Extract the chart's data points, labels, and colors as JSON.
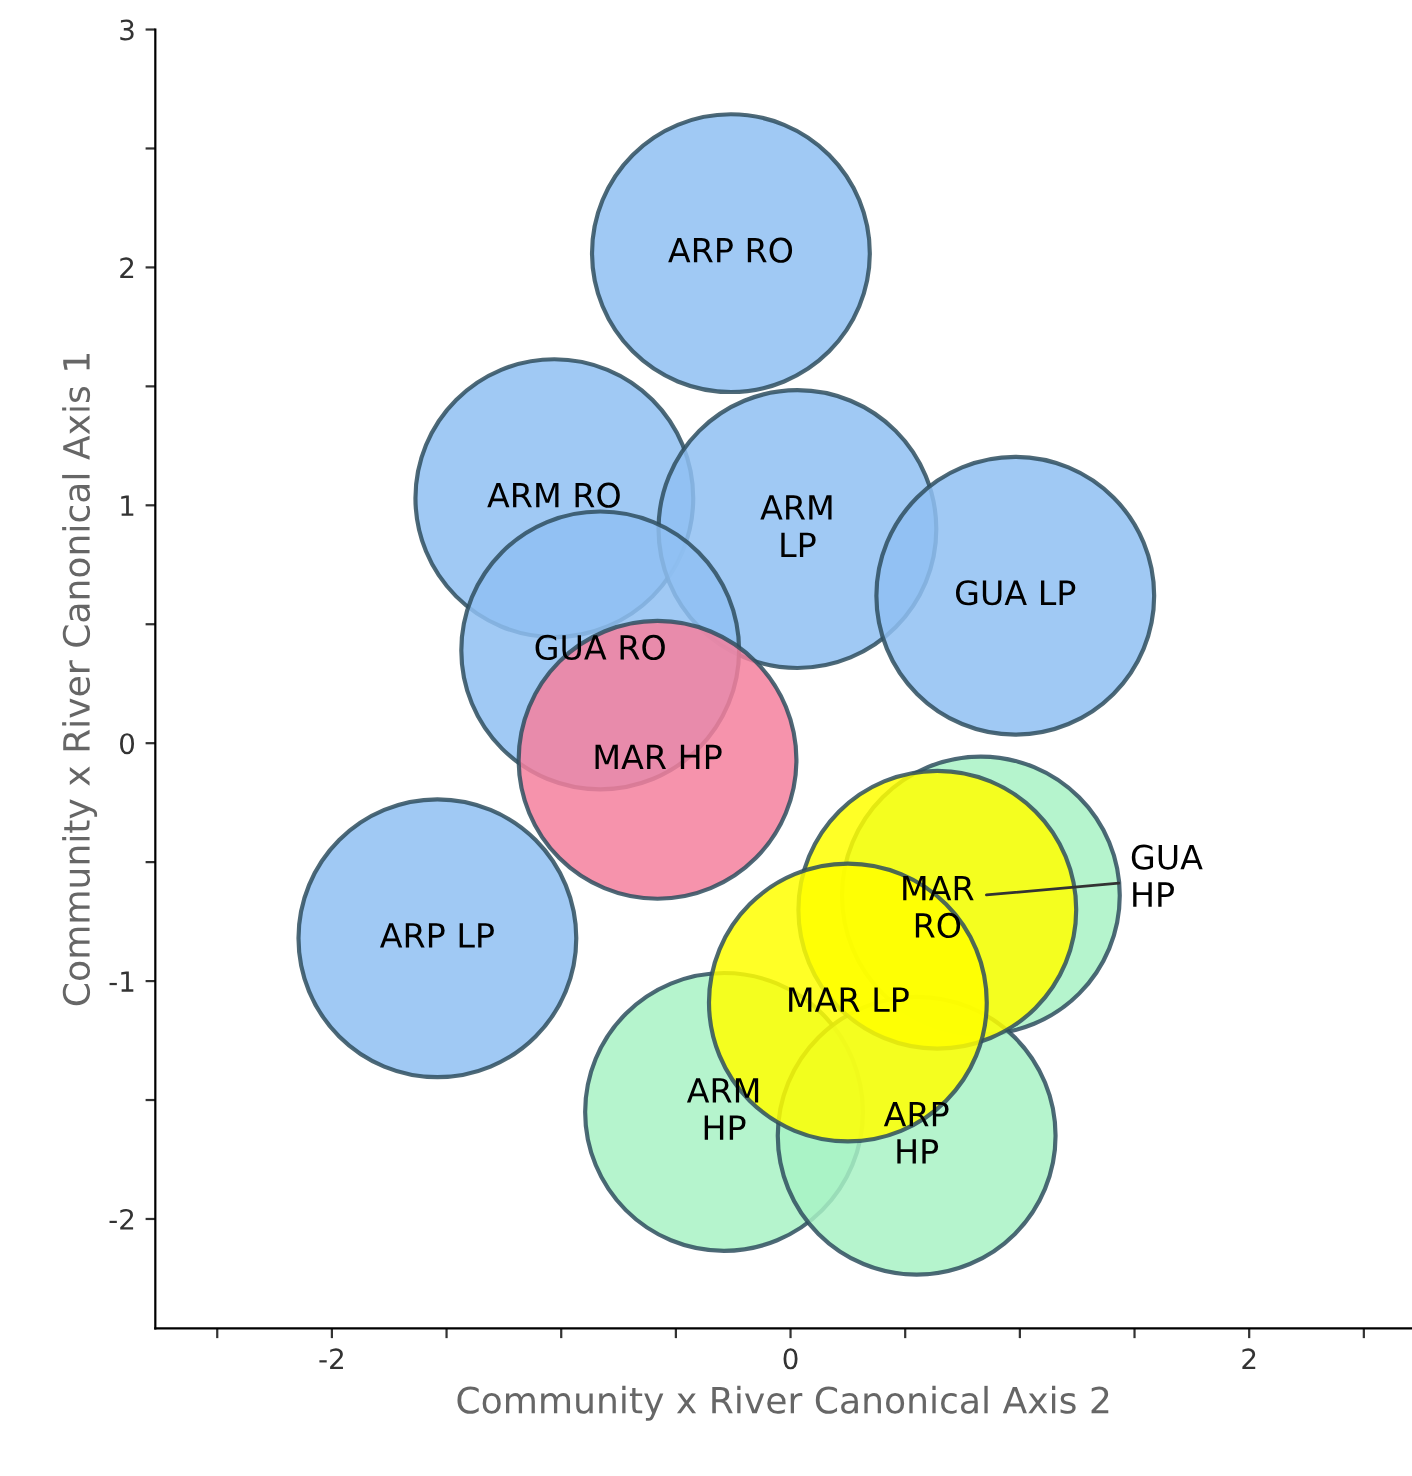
{
  "chart_data": {
    "type": "bubble",
    "xlabel": "Community x River Canonical Axis 2",
    "ylabel": "Community x River Canonical Axis 1",
    "xlim": [
      -2.77,
      2.71
    ],
    "ylim": [
      -2.46,
      3.0
    ],
    "xticks": [
      {
        "value": -2.5,
        "label": null
      },
      -2,
      {
        "value": -1.5,
        "label": null
      },
      {
        "value": -1,
        "label": null
      },
      {
        "value": -0.5,
        "label": null
      },
      0,
      {
        "value": 0.5,
        "label": null
      },
      {
        "value": 1,
        "label": null
      },
      {
        "value": 1.5,
        "label": null
      },
      2,
      {
        "value": 2.5,
        "label": null
      }
    ],
    "yticks": [
      -2,
      {
        "value": -1.5,
        "label": null
      },
      -1,
      {
        "value": -0.5,
        "label": null
      },
      0,
      {
        "value": 0.5,
        "label": null
      },
      1,
      {
        "value": 1.5,
        "label": null
      },
      2,
      {
        "value": 2.5,
        "label": null
      },
      3
    ],
    "grid": false,
    "legend": false,
    "series": [
      {
        "color": "#8fc0f2",
        "x": [
          -0.26,
          -1.03,
          0.03,
          0.98,
          -0.83,
          -1.54
        ],
        "values": [
          2.06,
          1.03,
          0.9,
          0.62,
          0.39,
          -0.82
        ],
        "sizes": [
          1,
          1,
          1,
          1,
          1,
          1
        ]
      },
      {
        "color": "#f4809e",
        "x": [
          -0.58
        ],
        "values": [
          -0.07
        ],
        "sizes": [
          1
        ]
      },
      {
        "color": "#a8f2c4",
        "x": [
          0.83,
          -0.29,
          0.55
        ],
        "values": [
          -0.64,
          -1.55,
          -1.65
        ],
        "sizes": [
          1,
          1,
          1
        ]
      },
      {
        "color": "#ffff00",
        "x": [
          0.64,
          0.25
        ],
        "values": [
          -0.7,
          -1.09
        ],
        "sizes": [
          1,
          1
        ]
      }
    ],
    "annotations": [
      {
        "text": "ARP RO",
        "x": -0.26,
        "y": 2.06
      },
      {
        "text": "ARM RO",
        "x": -1.03,
        "y": 1.03
      },
      {
        "text": "ARM\nLP",
        "x": 0.03,
        "y": 0.9
      },
      {
        "text": "GUA LP",
        "x": 0.98,
        "y": 0.62
      },
      {
        "text": "GUA RO",
        "x": -0.83,
        "y": 0.39
      },
      {
        "text": "ARP LP",
        "x": -1.54,
        "y": -0.82
      },
      {
        "text": "MAR HP",
        "x": -0.58,
        "y": -0.07
      },
      {
        "text": "MAR\nRO",
        "x": 0.64,
        "y": -0.7
      },
      {
        "text": "GUA\nHP",
        "x": 0.83,
        "y": -0.64
      },
      {
        "text": "ARM\nHP",
        "x": -0.29,
        "y": -1.55
      },
      {
        "text": "ARP\nHP",
        "x": 0.55,
        "y": -1.65
      },
      {
        "text": "MAR LP",
        "x": 0.25,
        "y": -1.09
      }
    ]
  }
}
